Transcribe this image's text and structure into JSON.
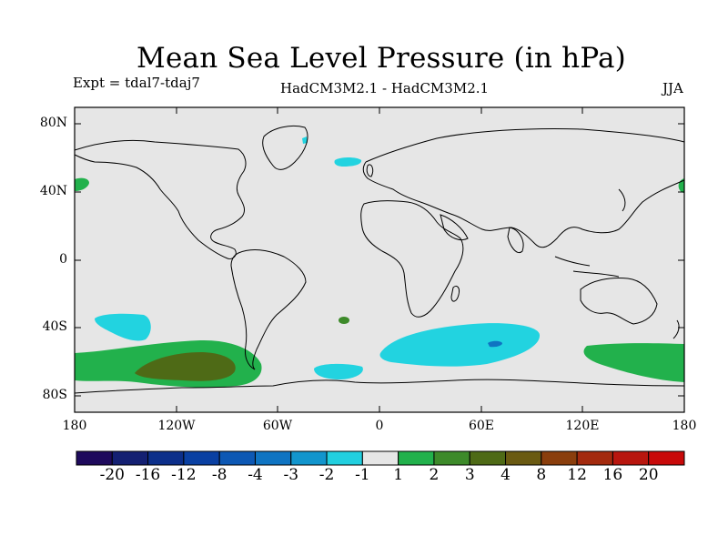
{
  "title": "Mean Sea Level Pressure (in hPa)",
  "subtitle_left": "Expt = tdal7-tdaj7",
  "subtitle_center": "HadCM3M2.1 - HadCM3M2.1",
  "subtitle_right": "JJA",
  "y_axis_labels": [
    "80N",
    "40N",
    "0",
    "40S",
    "80S"
  ],
  "x_axis_labels": [
    "180",
    "120W",
    "60W",
    "0",
    "60E",
    "120E",
    "180"
  ],
  "colorbar": {
    "labels": [
      "-20",
      "-16",
      "-12",
      "-8",
      "-4",
      "-3",
      "-2",
      "-1",
      "1",
      "2",
      "3",
      "4",
      "8",
      "12",
      "16",
      "20"
    ],
    "colors": [
      "#1e0a5c",
      "#142072",
      "#0c2f8a",
      "#0a40a2",
      "#0d58b4",
      "#0f74c2",
      "#1295cd",
      "#22cfdf",
      "#e6e6e6",
      "#22b14c",
      "#3d8a2a",
      "#4e6a16",
      "#6a5a12",
      "#8a3e0c",
      "#a32a0e",
      "#b8160e",
      "#c80a0a"
    ]
  },
  "colors": {
    "ocean": "#e6e6e6",
    "neg_small": "#22d3e0",
    "pos_small": "#22b14c",
    "pos_mid": "#4e6a16"
  }
}
